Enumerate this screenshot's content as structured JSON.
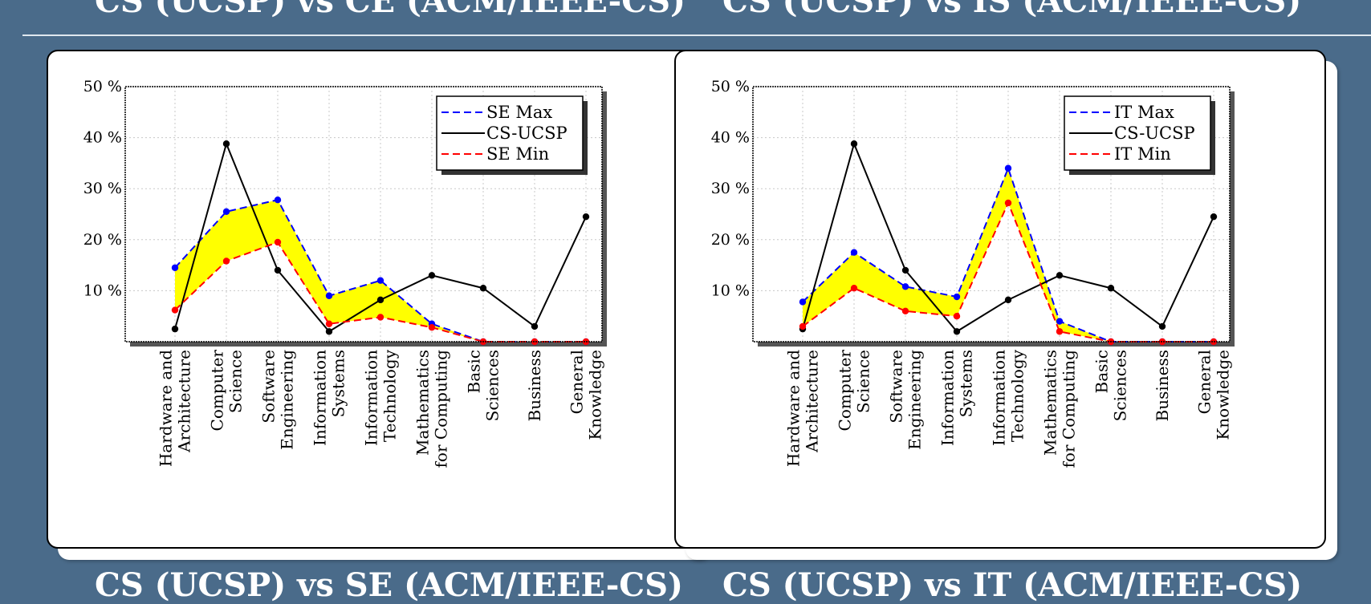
{
  "headings": {
    "top_left": "CS (UCSP) vs CE (ACM/IEEE-CS)",
    "top_right": "CS (UCSP) vs IS (ACM/IEEE-CS)",
    "bottom_left": "CS (UCSP) vs SE (ACM/IEEE-CS)",
    "bottom_right": "CS (UCSP) vs IT (ACM/IEEE-CS)"
  },
  "colors": {
    "background": "#4a6b8a",
    "max_line": "#0000ff",
    "min_line": "#ff0000",
    "cs_line": "#000000",
    "fill": "#ffff00"
  },
  "chart_data": [
    {
      "type": "line",
      "categories": [
        [
          "Hardware and",
          "Architecture"
        ],
        [
          "Computer",
          "Science"
        ],
        [
          "Software",
          "Engineering"
        ],
        [
          "Information",
          "Systems"
        ],
        [
          "Information",
          "Technology"
        ],
        [
          "Mathematics",
          "for Computing"
        ],
        [
          "Basic",
          "Sciences"
        ],
        [
          "Business"
        ],
        [
          "General",
          "Knowledge"
        ]
      ],
      "y_ticks": [
        "10 %",
        "20 %",
        "30 %",
        "40 %",
        "50 %"
      ],
      "ylim": [
        0,
        50
      ],
      "grid": true,
      "legend_position": "top-right",
      "fill_between": [
        "max",
        "min"
      ],
      "series": [
        {
          "key": "max",
          "name": "SE Max",
          "style": "dashed",
          "color": "#0000ff",
          "values": [
            14.5,
            25.5,
            27.8,
            9.0,
            12.0,
            3.5,
            0,
            0,
            0
          ]
        },
        {
          "key": "cs",
          "name": "CS-UCSP",
          "style": "solid",
          "color": "#000000",
          "values": [
            2.5,
            38.8,
            14.0,
            2.0,
            8.2,
            13.0,
            10.5,
            3.0,
            24.5
          ]
        },
        {
          "key": "min",
          "name": "SE Min",
          "style": "dashed",
          "color": "#ff0000",
          "values": [
            6.2,
            15.8,
            19.5,
            3.5,
            4.8,
            2.8,
            0,
            0,
            0
          ]
        }
      ]
    },
    {
      "type": "line",
      "categories": [
        [
          "Hardware and",
          "Architecture"
        ],
        [
          "Computer",
          "Science"
        ],
        [
          "Software",
          "Engineering"
        ],
        [
          "Information",
          "Systems"
        ],
        [
          "Information",
          "Technology"
        ],
        [
          "Mathematics",
          "for Computing"
        ],
        [
          "Basic",
          "Sciences"
        ],
        [
          "Business"
        ],
        [
          "General",
          "Knowledge"
        ]
      ],
      "y_ticks": [
        "10 %",
        "20 %",
        "30 %",
        "40 %",
        "50 %"
      ],
      "ylim": [
        0,
        50
      ],
      "grid": true,
      "legend_position": "top-right",
      "fill_between": [
        "max",
        "min"
      ],
      "series": [
        {
          "key": "max",
          "name": "IT Max",
          "style": "dashed",
          "color": "#0000ff",
          "values": [
            7.8,
            17.5,
            10.8,
            8.8,
            34.0,
            4.0,
            0,
            0,
            0
          ]
        },
        {
          "key": "cs",
          "name": "CS-UCSP",
          "style": "solid",
          "color": "#000000",
          "values": [
            2.5,
            38.8,
            14.0,
            2.0,
            8.2,
            13.0,
            10.5,
            3.0,
            24.5
          ]
        },
        {
          "key": "min",
          "name": "IT Min",
          "style": "dashed",
          "color": "#ff0000",
          "values": [
            3.0,
            10.5,
            6.0,
            5.0,
            27.2,
            2.0,
            0,
            0,
            0
          ]
        }
      ]
    }
  ]
}
